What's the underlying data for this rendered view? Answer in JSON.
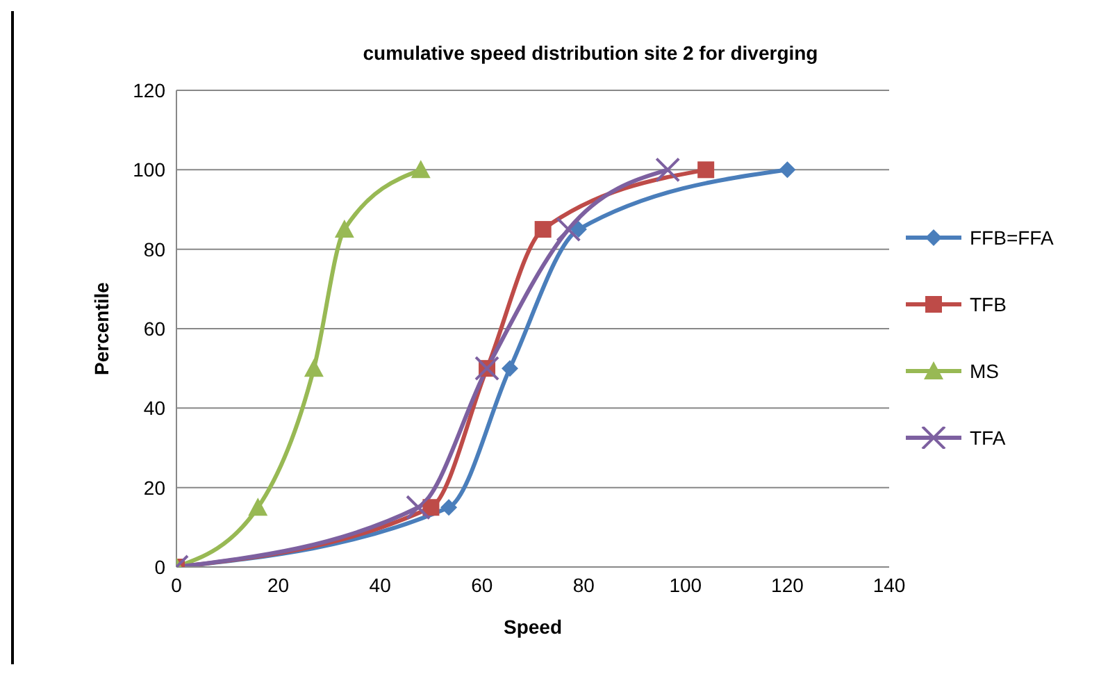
{
  "chart_data": {
    "type": "line",
    "title": "cumulative speed distribution site 2 for diverging",
    "xlabel": "Speed",
    "ylabel": "Percentile",
    "series": [
      {
        "name": "FFB=FFA",
        "color": "#4a7ebb",
        "marker": "diamond",
        "x": [
          0,
          53.5,
          65.5,
          79,
          120
        ],
        "values": [
          0,
          15,
          50,
          85,
          100
        ]
      },
      {
        "name": "TFB",
        "color": "#be4b48",
        "marker": "square",
        "x": [
          0,
          50,
          61,
          72,
          104
        ],
        "values": [
          0,
          15,
          50,
          85,
          100
        ]
      },
      {
        "name": "MS",
        "color": "#98b954",
        "marker": "triangle",
        "x": [
          0,
          16,
          27,
          33,
          48
        ],
        "values": [
          0,
          15,
          50,
          85,
          100
        ]
      },
      {
        "name": "TFA",
        "color": "#7d60a0",
        "marker": "cross",
        "x": [
          0,
          47.5,
          61,
          77,
          96.5
        ],
        "values": [
          0,
          15,
          50,
          85,
          100
        ]
      }
    ],
    "xlim": [
      0,
      140
    ],
    "xticks": [
      0,
      20,
      40,
      60,
      80,
      100,
      120,
      140
    ],
    "ylim": [
      0,
      120
    ],
    "yticks": [
      0,
      20,
      40,
      60,
      80,
      100,
      120
    ],
    "grid": "y",
    "legend": "right"
  }
}
